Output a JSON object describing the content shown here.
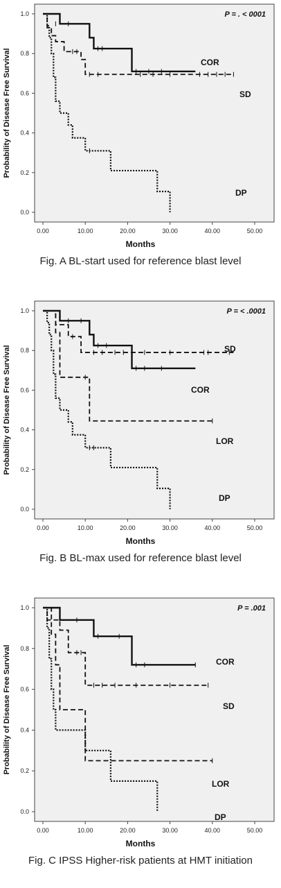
{
  "chart_data": [
    {
      "type": "line",
      "step": true,
      "title": "",
      "xlabel": "Months",
      "ylabel": "Probability of Disease Free Survival",
      "xlim": [
        0,
        50
      ],
      "ylim": [
        0,
        1
      ],
      "xticks": [
        "0.00",
        "10.00",
        "20.00",
        "30.00",
        "40.00",
        "50.00"
      ],
      "yticks": [
        "0.0",
        "0.2",
        "0.4",
        "0.6",
        "0.8",
        "1.0"
      ],
      "p_value": "P = . < 0001",
      "caption": "Fig. A BL-start used for reference blast level",
      "series": [
        {
          "name": "COR",
          "style": "solid",
          "x": [
            0,
            4,
            11,
            12,
            21,
            36
          ],
          "y": [
            1.0,
            0.95,
            0.88,
            0.825,
            0.71,
            0.71
          ],
          "censored": [
            [
              3,
              0.95
            ],
            [
              6,
              0.95
            ],
            [
              13,
              0.825
            ],
            [
              14,
              0.825
            ],
            [
              22,
              0.71
            ],
            [
              25,
              0.71
            ],
            [
              28,
              0.71
            ]
          ]
        },
        {
          "name": "SD",
          "style": "dashed",
          "x": [
            0,
            1,
            2,
            3,
            5,
            9,
            10,
            45
          ],
          "y": [
            1.0,
            0.93,
            0.89,
            0.86,
            0.81,
            0.77,
            0.695,
            0.695
          ],
          "censored": [
            [
              7,
              0.81
            ],
            [
              8,
              0.81
            ],
            [
              11,
              0.695
            ],
            [
              13,
              0.695
            ],
            [
              23,
              0.695
            ],
            [
              26,
              0.695
            ],
            [
              30,
              0.695
            ],
            [
              37,
              0.695
            ],
            [
              39,
              0.695
            ],
            [
              41,
              0.695
            ],
            [
              43,
              0.695
            ],
            [
              45,
              0.695
            ]
          ]
        },
        {
          "name": "DP",
          "style": "dotted",
          "x": [
            0,
            1,
            1.5,
            2,
            2.5,
            3,
            4,
            6,
            7,
            10,
            16,
            27,
            29,
            30
          ],
          "y": [
            1.0,
            0.94,
            0.88,
            0.8,
            0.68,
            0.56,
            0.5,
            0.44,
            0.375,
            0.31,
            0.21,
            0.105,
            0.105,
            0.0
          ],
          "censored": [
            [
              11,
              0.31
            ]
          ]
        }
      ]
    },
    {
      "type": "line",
      "step": true,
      "title": "",
      "xlabel": "Months",
      "ylabel": "Probability of Disease Free Survival",
      "xlim": [
        0,
        50
      ],
      "ylim": [
        0,
        1
      ],
      "xticks": [
        "0.00",
        "10.00",
        "20.00",
        "30.00",
        "40.00",
        "50.00"
      ],
      "yticks": [
        "0.0",
        "0.2",
        "0.4",
        "0.6",
        "0.8",
        "1.0"
      ],
      "p_value": "P = < .0001",
      "caption": "Fig. B BL-max used for reference blast level",
      "series": [
        {
          "name": "SD",
          "style": "dashed",
          "x": [
            0,
            3,
            6,
            9,
            45
          ],
          "y": [
            1.0,
            0.93,
            0.87,
            0.79,
            0.79
          ],
          "censored": [
            [
              7,
              0.87
            ],
            [
              12,
              0.79
            ],
            [
              14,
              0.79
            ],
            [
              17,
              0.79
            ],
            [
              19,
              0.79
            ],
            [
              24,
              0.79
            ],
            [
              30,
              0.79
            ],
            [
              38,
              0.79
            ],
            [
              39,
              0.79
            ],
            [
              44,
              0.79
            ]
          ]
        },
        {
          "name": "COR",
          "style": "solid",
          "x": [
            0,
            4,
            11,
            12,
            21,
            36
          ],
          "y": [
            1.0,
            0.95,
            0.88,
            0.825,
            0.71,
            0.71
          ],
          "censored": [
            [
              6,
              0.95
            ],
            [
              9,
              0.95
            ],
            [
              13,
              0.825
            ],
            [
              15,
              0.825
            ],
            [
              22,
              0.71
            ],
            [
              24,
              0.71
            ],
            [
              28,
              0.71
            ]
          ]
        },
        {
          "name": "LOR",
          "style": "dashed",
          "x": [
            0,
            3,
            4,
            10,
            11,
            40
          ],
          "y": [
            1.0,
            0.89,
            0.665,
            0.665,
            0.445,
            0.445
          ],
          "censored": [
            [
              10,
              0.665
            ],
            [
              40,
              0.445
            ]
          ]
        },
        {
          "name": "DP",
          "style": "dotted",
          "x": [
            0,
            1,
            1.5,
            2,
            2.5,
            3,
            4,
            6,
            7,
            10,
            16,
            27,
            29,
            30
          ],
          "y": [
            1.0,
            0.94,
            0.88,
            0.8,
            0.68,
            0.56,
            0.5,
            0.44,
            0.375,
            0.31,
            0.21,
            0.105,
            0.105,
            0.0
          ],
          "censored": [
            [
              11,
              0.31
            ],
            [
              12,
              0.31
            ]
          ]
        }
      ]
    },
    {
      "type": "line",
      "step": true,
      "title": "",
      "xlabel": "Months",
      "ylabel": "Probability of Disease Free Survival",
      "xlim": [
        0,
        50
      ],
      "ylim": [
        0,
        1
      ],
      "xticks": [
        "0.00",
        "10.00",
        "20.00",
        "30.00",
        "40.00",
        "50.00"
      ],
      "yticks": [
        "0.0",
        "0.2",
        "0.4",
        "0.6",
        "0.8",
        "1.0"
      ],
      "p_value": "P = .001",
      "caption": "Fig. C IPSS Higher-risk patients at HMT initiation",
      "series": [
        {
          "name": "COR",
          "style": "solid",
          "x": [
            0,
            4,
            12,
            21,
            22,
            36
          ],
          "y": [
            1.0,
            0.94,
            0.86,
            0.72,
            0.72,
            0.72
          ],
          "censored": [
            [
              8,
              0.94
            ],
            [
              13,
              0.86
            ],
            [
              18,
              0.86
            ],
            [
              22,
              0.72
            ],
            [
              24,
              0.72
            ],
            [
              36,
              0.72
            ]
          ]
        },
        {
          "name": "SD",
          "style": "dashed",
          "x": [
            0,
            1,
            4,
            6,
            10,
            39
          ],
          "y": [
            1.0,
            0.94,
            0.89,
            0.78,
            0.62,
            0.62
          ],
          "censored": [
            [
              8,
              0.78
            ],
            [
              9,
              0.78
            ],
            [
              12,
              0.62
            ],
            [
              14,
              0.62
            ],
            [
              17,
              0.62
            ],
            [
              22,
              0.62
            ],
            [
              30,
              0.62
            ],
            [
              39,
              0.62
            ]
          ]
        },
        {
          "name": "LOR",
          "style": "dashed",
          "x": [
            0,
            2,
            3,
            4,
            10,
            40
          ],
          "y": [
            1.0,
            0.87,
            0.72,
            0.5,
            0.25,
            0.25
          ],
          "censored": [
            [
              40,
              0.25
            ]
          ]
        },
        {
          "name": "DP",
          "style": "dotted",
          "x": [
            0,
            1,
            1.5,
            2,
            2.5,
            3,
            10,
            16,
            27
          ],
          "y": [
            1.0,
            0.9,
            0.75,
            0.6,
            0.5,
            0.4,
            0.3,
            0.15,
            0.0
          ],
          "censored": []
        }
      ]
    }
  ]
}
